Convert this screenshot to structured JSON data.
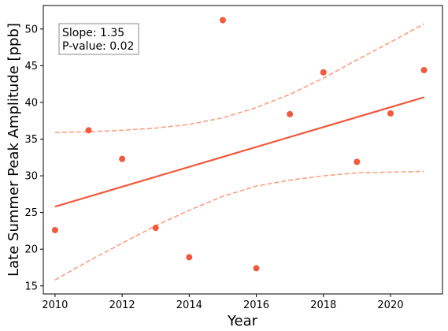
{
  "chart_data": {
    "type": "scatter",
    "title": "",
    "xlabel": "Year",
    "ylabel": "Late Summer Peak Amplitude [ppb]",
    "xlim": [
      2009.65,
      2021.55
    ],
    "ylim": [
      13.9,
      53.2
    ],
    "xticks": [
      2010,
      2012,
      2014,
      2016,
      2018,
      2020
    ],
    "yticks": [
      15,
      20,
      25,
      30,
      35,
      40,
      45,
      50
    ],
    "grid": false,
    "points": [
      {
        "x": 2010,
        "y": 22.6
      },
      {
        "x": 2011,
        "y": 36.2
      },
      {
        "x": 2012,
        "y": 32.3
      },
      {
        "x": 2013,
        "y": 22.9
      },
      {
        "x": 2014,
        "y": 18.9
      },
      {
        "x": 2015,
        "y": 51.2
      },
      {
        "x": 2016,
        "y": 17.4
      },
      {
        "x": 2017,
        "y": 38.4
      },
      {
        "x": 2018,
        "y": 44.1
      },
      {
        "x": 2019,
        "y": 31.9
      },
      {
        "x": 2020,
        "y": 38.5
      },
      {
        "x": 2021,
        "y": 44.4
      }
    ],
    "fit_line": {
      "x": [
        2010,
        2021
      ],
      "y": [
        25.8,
        40.7
      ]
    },
    "confidence_upper": {
      "x": [
        2010,
        2011,
        2012,
        2013,
        2014,
        2015,
        2016,
        2017,
        2018,
        2019,
        2020,
        2021
      ],
      "y": [
        35.9,
        36.0,
        36.2,
        36.5,
        37.0,
        37.9,
        39.3,
        41.1,
        43.3,
        45.8,
        48.2,
        50.7
      ]
    },
    "confidence_lower": {
      "x": [
        2010,
        2011,
        2012,
        2013,
        2014,
        2015,
        2016,
        2017,
        2018,
        2019,
        2020,
        2021
      ],
      "y": [
        15.8,
        18.4,
        20.8,
        23.2,
        25.3,
        27.2,
        28.6,
        29.4,
        30.0,
        30.4,
        30.5,
        30.6
      ]
    },
    "annotation": {
      "slope_text": "Slope: 1.35",
      "pvalue_text": "P-value: 0.02",
      "placement": "top-left"
    },
    "colors": {
      "points": "#f15a3d",
      "fit_line": "#f15a3d",
      "confidence": "#f9a081"
    }
  }
}
